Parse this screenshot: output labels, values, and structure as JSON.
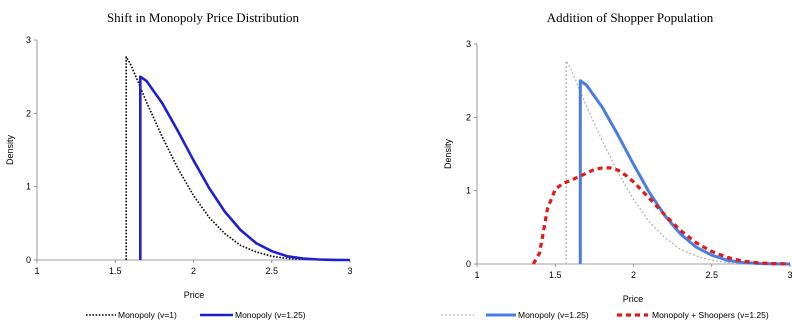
{
  "chart_data": [
    {
      "type": "line",
      "title": "Shift in Monopoly Price Distribution",
      "xlabel": "Price",
      "ylabel": "Density",
      "xlim": [
        1,
        3
      ],
      "ylim": [
        0,
        3
      ],
      "xticks": [
        "1",
        "1.5",
        "2",
        "2.5",
        "3"
      ],
      "yticks": [
        "0",
        "1",
        "2",
        "3"
      ],
      "grid": false,
      "legend": "bottom",
      "series": [
        {
          "name": "Monopoly (v=1)",
          "color": "#000000",
          "style": "dotted",
          "width": 1.6,
          "x": [
            1.57,
            1.57,
            1.6,
            1.7,
            1.8,
            1.9,
            2.0,
            2.1,
            2.2,
            2.3,
            2.4,
            2.5,
            2.6,
            2.7,
            2.8,
            2.9,
            3.0
          ],
          "y": [
            0,
            2.77,
            2.66,
            2.15,
            1.68,
            1.25,
            0.88,
            0.58,
            0.36,
            0.2,
            0.11,
            0.05,
            0.02,
            0.01,
            0.004,
            0.001,
            0
          ]
        },
        {
          "name": "Monopoly (v=1.25)",
          "color": "#1f1fd1",
          "style": "solid",
          "width": 2.6,
          "x": [
            1.66,
            1.66,
            1.7,
            1.8,
            1.9,
            2.0,
            2.1,
            2.2,
            2.3,
            2.4,
            2.5,
            2.6,
            2.7,
            2.8,
            2.9,
            3.0
          ],
          "y": [
            0,
            2.5,
            2.44,
            2.14,
            1.76,
            1.36,
            0.98,
            0.66,
            0.41,
            0.23,
            0.12,
            0.05,
            0.02,
            0.007,
            0.002,
            0
          ]
        }
      ]
    },
    {
      "type": "line",
      "title": "Addition of Shopper Population",
      "xlabel": "Price",
      "ylabel": "Density",
      "xlim": [
        1,
        3
      ],
      "ylim": [
        0,
        3
      ],
      "xticks": [
        "1",
        "1.5",
        "2",
        "2.5",
        "3"
      ],
      "yticks": [
        "0",
        "1",
        "2",
        "3"
      ],
      "grid": false,
      "legend": "bottom",
      "series": [
        {
          "name": "",
          "color": "#b0b0b0",
          "style": "dotted-thin",
          "width": 1.2,
          "x": [
            1.57,
            1.57,
            1.6,
            1.7,
            1.8,
            1.9,
            2.0,
            2.1,
            2.2,
            2.3,
            2.4,
            2.5,
            2.6,
            2.7,
            2.8,
            2.9,
            3.0
          ],
          "y": [
            0,
            2.77,
            2.66,
            2.15,
            1.68,
            1.25,
            0.88,
            0.58,
            0.36,
            0.2,
            0.11,
            0.05,
            0.02,
            0.01,
            0.004,
            0.001,
            0
          ]
        },
        {
          "name": "Monopoly (v=1.25)",
          "color": "#4a7de2",
          "style": "solid",
          "width": 3,
          "x": [
            1.66,
            1.66,
            1.7,
            1.8,
            1.9,
            2.0,
            2.1,
            2.2,
            2.3,
            2.4,
            2.5,
            2.6,
            2.7,
            2.8,
            2.9,
            3.0
          ],
          "y": [
            0,
            2.5,
            2.44,
            2.14,
            1.76,
            1.36,
            0.98,
            0.66,
            0.41,
            0.23,
            0.12,
            0.05,
            0.02,
            0.007,
            0.002,
            0
          ]
        },
        {
          "name": "Monopoly + Shoopers (v=1.25)",
          "color": "#e01b1b",
          "style": "dashed",
          "width": 3.2,
          "x": [
            1.36,
            1.4,
            1.45,
            1.5,
            1.55,
            1.6,
            1.65,
            1.7,
            1.75,
            1.8,
            1.85,
            1.9,
            1.95,
            2.0,
            2.1,
            2.2,
            2.3,
            2.4,
            2.5,
            2.6,
            2.7,
            2.8,
            2.9,
            3.0
          ],
          "y": [
            0,
            0.15,
            0.75,
            1.02,
            1.1,
            1.14,
            1.19,
            1.24,
            1.29,
            1.31,
            1.31,
            1.28,
            1.21,
            1.12,
            0.9,
            0.67,
            0.46,
            0.29,
            0.17,
            0.09,
            0.04,
            0.015,
            0.005,
            0
          ]
        }
      ]
    }
  ]
}
